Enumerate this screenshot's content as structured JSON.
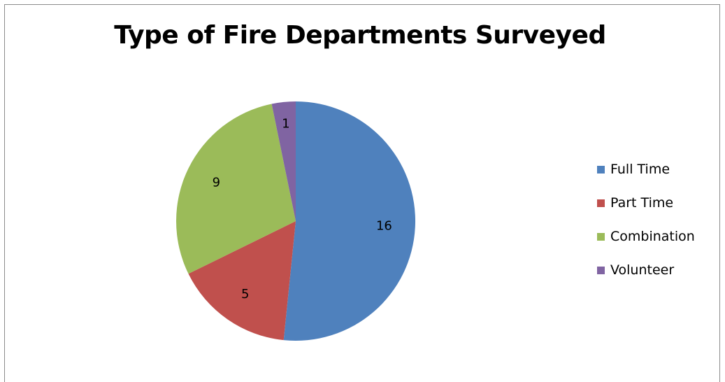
{
  "chart_data": {
    "type": "pie",
    "title": "Type of Fire Departments Surveyed",
    "categories": [
      "Full Time",
      "Part Time",
      "Combination",
      "Volunteer"
    ],
    "values": [
      16,
      5,
      9,
      1
    ],
    "data_labels": [
      "16",
      "5",
      "9",
      "1"
    ],
    "colors": [
      "#4f81bd",
      "#c0504d",
      "#9bbb59",
      "#8064a2"
    ],
    "start_angle": "12 o'clock",
    "direction": "clockwise",
    "legend_position": "right"
  }
}
